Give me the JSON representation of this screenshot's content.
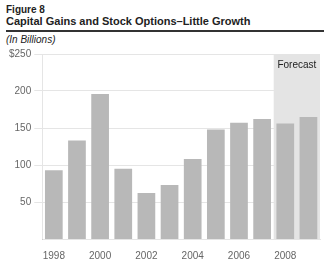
{
  "chart_data": {
    "type": "bar",
    "figure_label": "Figure 8",
    "title": "Capital Gains and Stock Options–Little Growth",
    "subtitle": "(In Billions)",
    "categories": [
      "1998",
      null,
      "2000",
      null,
      "2002",
      null,
      "2004",
      null,
      "2006",
      null,
      "2008",
      null
    ],
    "values": [
      93,
      133,
      196,
      95,
      62,
      73,
      108,
      148,
      157,
      162,
      156,
      165
    ],
    "color": "#b8b8b8",
    "ylim": [
      0,
      250
    ],
    "yticks": [
      50,
      100,
      150,
      200,
      {
        "value": 250,
        "label": "$250"
      }
    ],
    "grid": true,
    "annotations": [
      {
        "text": "Forecast",
        "from": "2008",
        "color": "#e4e4e4"
      }
    ]
  }
}
